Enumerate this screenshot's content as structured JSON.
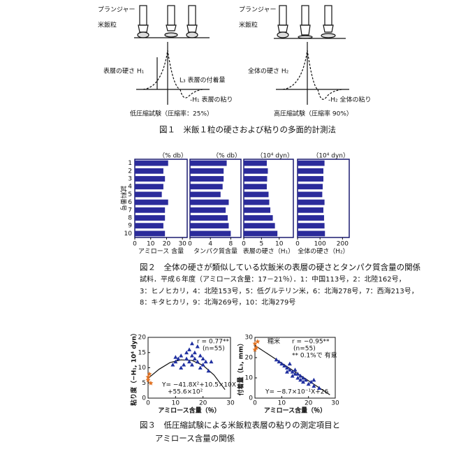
{
  "figure1": {
    "left": {
      "plunger": "プランジャー",
      "grain": "米飯粒",
      "h1": "表層の硬さ H₁",
      "l3": "L₃ 表層の付着量",
      "neg_h1": "-H₁ 表層の粘り",
      "test": "低圧縮試験（圧縮率：25%）"
    },
    "right": {
      "plunger": "プランジャー",
      "grain": "米飯粒",
      "h2": "全体の硬さ H₂",
      "neg_h2": "-H₂ 全体の粘り",
      "test": "高圧縮試験（圧縮率 90%）"
    },
    "caption": "図１　米飯１粒の硬さおよび粘りの多面的計測法"
  },
  "figure2": {
    "y_label": "試料番号",
    "caption": "図２　全体の硬さが類似している炊飯米の表層の硬さとタンパク質含量の関係",
    "note": [
      "試料．平成６年度（アミロース含量：17－21％）．1：中国113号，2：北陸162号，",
      "3：ヒノヒカリ，4：北陸153号，5：低グルテリン米，6：北海278号，7：西海213号，",
      "8：キタヒカリ，9：北海269号，10：北海279号"
    ]
  },
  "chart_data": [
    {
      "type": "hbar",
      "unit": "（% db）",
      "xlabel": "アミロース 含量",
      "categories": [
        "1",
        "2",
        "3",
        "4",
        "5",
        "6",
        "7",
        "8",
        "9",
        "10"
      ],
      "values": [
        21,
        18,
        19,
        18,
        17,
        21,
        19,
        19,
        18,
        19
      ],
      "color": "#2b2b9b",
      "xlim": [
        0,
        33
      ],
      "xticks": [
        0,
        10,
        20,
        30
      ]
    },
    {
      "type": "hbar",
      "unit": "（% db）",
      "xlabel": "タンパク質含量",
      "values": [
        7.2,
        6.6,
        6.6,
        6.4,
        6.0,
        7.6,
        7.0,
        7.4,
        7.6,
        8.0
      ],
      "color": "#2b2b9b",
      "xlim": [
        0,
        10
      ],
      "xticks": [
        0,
        4,
        8
      ]
    },
    {
      "type": "hbar",
      "unit": "（10⁴ dyn）",
      "xlabel": "表層の硬さ（H₁）",
      "values": [
        6.5,
        6.8,
        6.6,
        6.5,
        7.0,
        7.2,
        7.5,
        8.2,
        8.8,
        9.5
      ],
      "color": "#2b2b9b",
      "xlim": [
        0,
        14
      ],
      "xticks": [
        0,
        5,
        10
      ]
    },
    {
      "type": "hbar",
      "unit": "（10⁴ dyn）",
      "xlabel": "全体の硬さ（H₂）",
      "values": [
        120,
        115,
        115,
        112,
        110,
        120,
        115,
        118,
        120,
        122
      ],
      "color": "#2b2b9b",
      "xlim": [
        0,
        230
      ],
      "xticks": [
        0,
        100,
        200
      ]
    },
    {
      "type": "scatter",
      "ylabel": "粘り度（−H₁, 10⁴ dyn）",
      "xlabel": "アミロース含量（％）",
      "xlim": [
        0,
        30
      ],
      "ylim": [
        0,
        20
      ],
      "xticks": [
        0,
        10,
        20,
        30
      ],
      "yticks": [
        0,
        5,
        10,
        15,
        20
      ],
      "series": [
        {
          "color": "#e07020",
          "marker": "star",
          "x": [
            0,
            0,
            0.5,
            1
          ],
          "y": [
            7,
            6,
            8,
            5
          ]
        },
        {
          "color": "#2030a0",
          "marker": "triangle",
          "x": [
            9,
            10,
            11,
            12,
            12,
            13,
            14,
            14,
            15,
            15,
            16,
            16,
            17,
            17,
            18,
            18,
            19,
            19,
            20,
            20,
            21,
            22,
            16,
            23,
            10
          ],
          "y": [
            11,
            12,
            13,
            14,
            10,
            11,
            13,
            15,
            12,
            16,
            14,
            11,
            13,
            15,
            12,
            17,
            14,
            10,
            13,
            11,
            12,
            9,
            18,
            12,
            13.5
          ]
        }
      ],
      "fit": {
        "x": [
          0,
          4,
          8,
          12,
          16,
          20,
          24,
          28
        ],
        "y": [
          6.5,
          9.5,
          11.7,
          12.6,
          12.4,
          10.8,
          7.6,
          2.8
        ]
      },
      "annotations": [
        "r = 0.77**",
        "(n=55)",
        "Y= −41.8X²+10.5×10X",
        "+55.6×10²"
      ]
    },
    {
      "type": "scatter",
      "ylabel": "付着量（L₃, mm）",
      "xlabel": "アミロース含量（％）",
      "xlim": [
        0,
        30
      ],
      "ylim": [
        0,
        30
      ],
      "xticks": [
        0,
        10,
        20,
        30
      ],
      "yticks": [
        0,
        10,
        20,
        30
      ],
      "series": [
        {
          "color": "#e07020",
          "marker": "star",
          "x": [
            0,
            0.5,
            1,
            0
          ],
          "y": [
            27,
            25,
            28,
            24
          ]
        },
        {
          "color": "#2030a0",
          "marker": "triangle",
          "x": [
            8,
            10,
            11,
            12,
            12,
            13,
            14,
            14,
            15,
            15,
            16,
            16,
            17,
            17,
            18,
            18,
            19,
            20,
            21,
            22,
            24,
            22,
            13,
            9
          ],
          "y": [
            19,
            17,
            16,
            15,
            13,
            14,
            13,
            11,
            12,
            14,
            10,
            12,
            11,
            9,
            10,
            8,
            9,
            7,
            8,
            6,
            5,
            9,
            17,
            18
          ]
        }
      ],
      "fit": {
        "x": [
          0,
          28
        ],
        "y": [
          26,
          1.64
        ]
      },
      "annotations": [
        "糯米",
        "r = −0.95**",
        "(n=55)",
        "** 0.1%で 有意",
        "Y= −8.7×10⁻¹X+26"
      ]
    }
  ],
  "figure3": {
    "caption": [
      "図３　低圧縮試験による米飯粒表層の粘りの測定項目と",
      "アミロース含量の関係"
    ]
  }
}
